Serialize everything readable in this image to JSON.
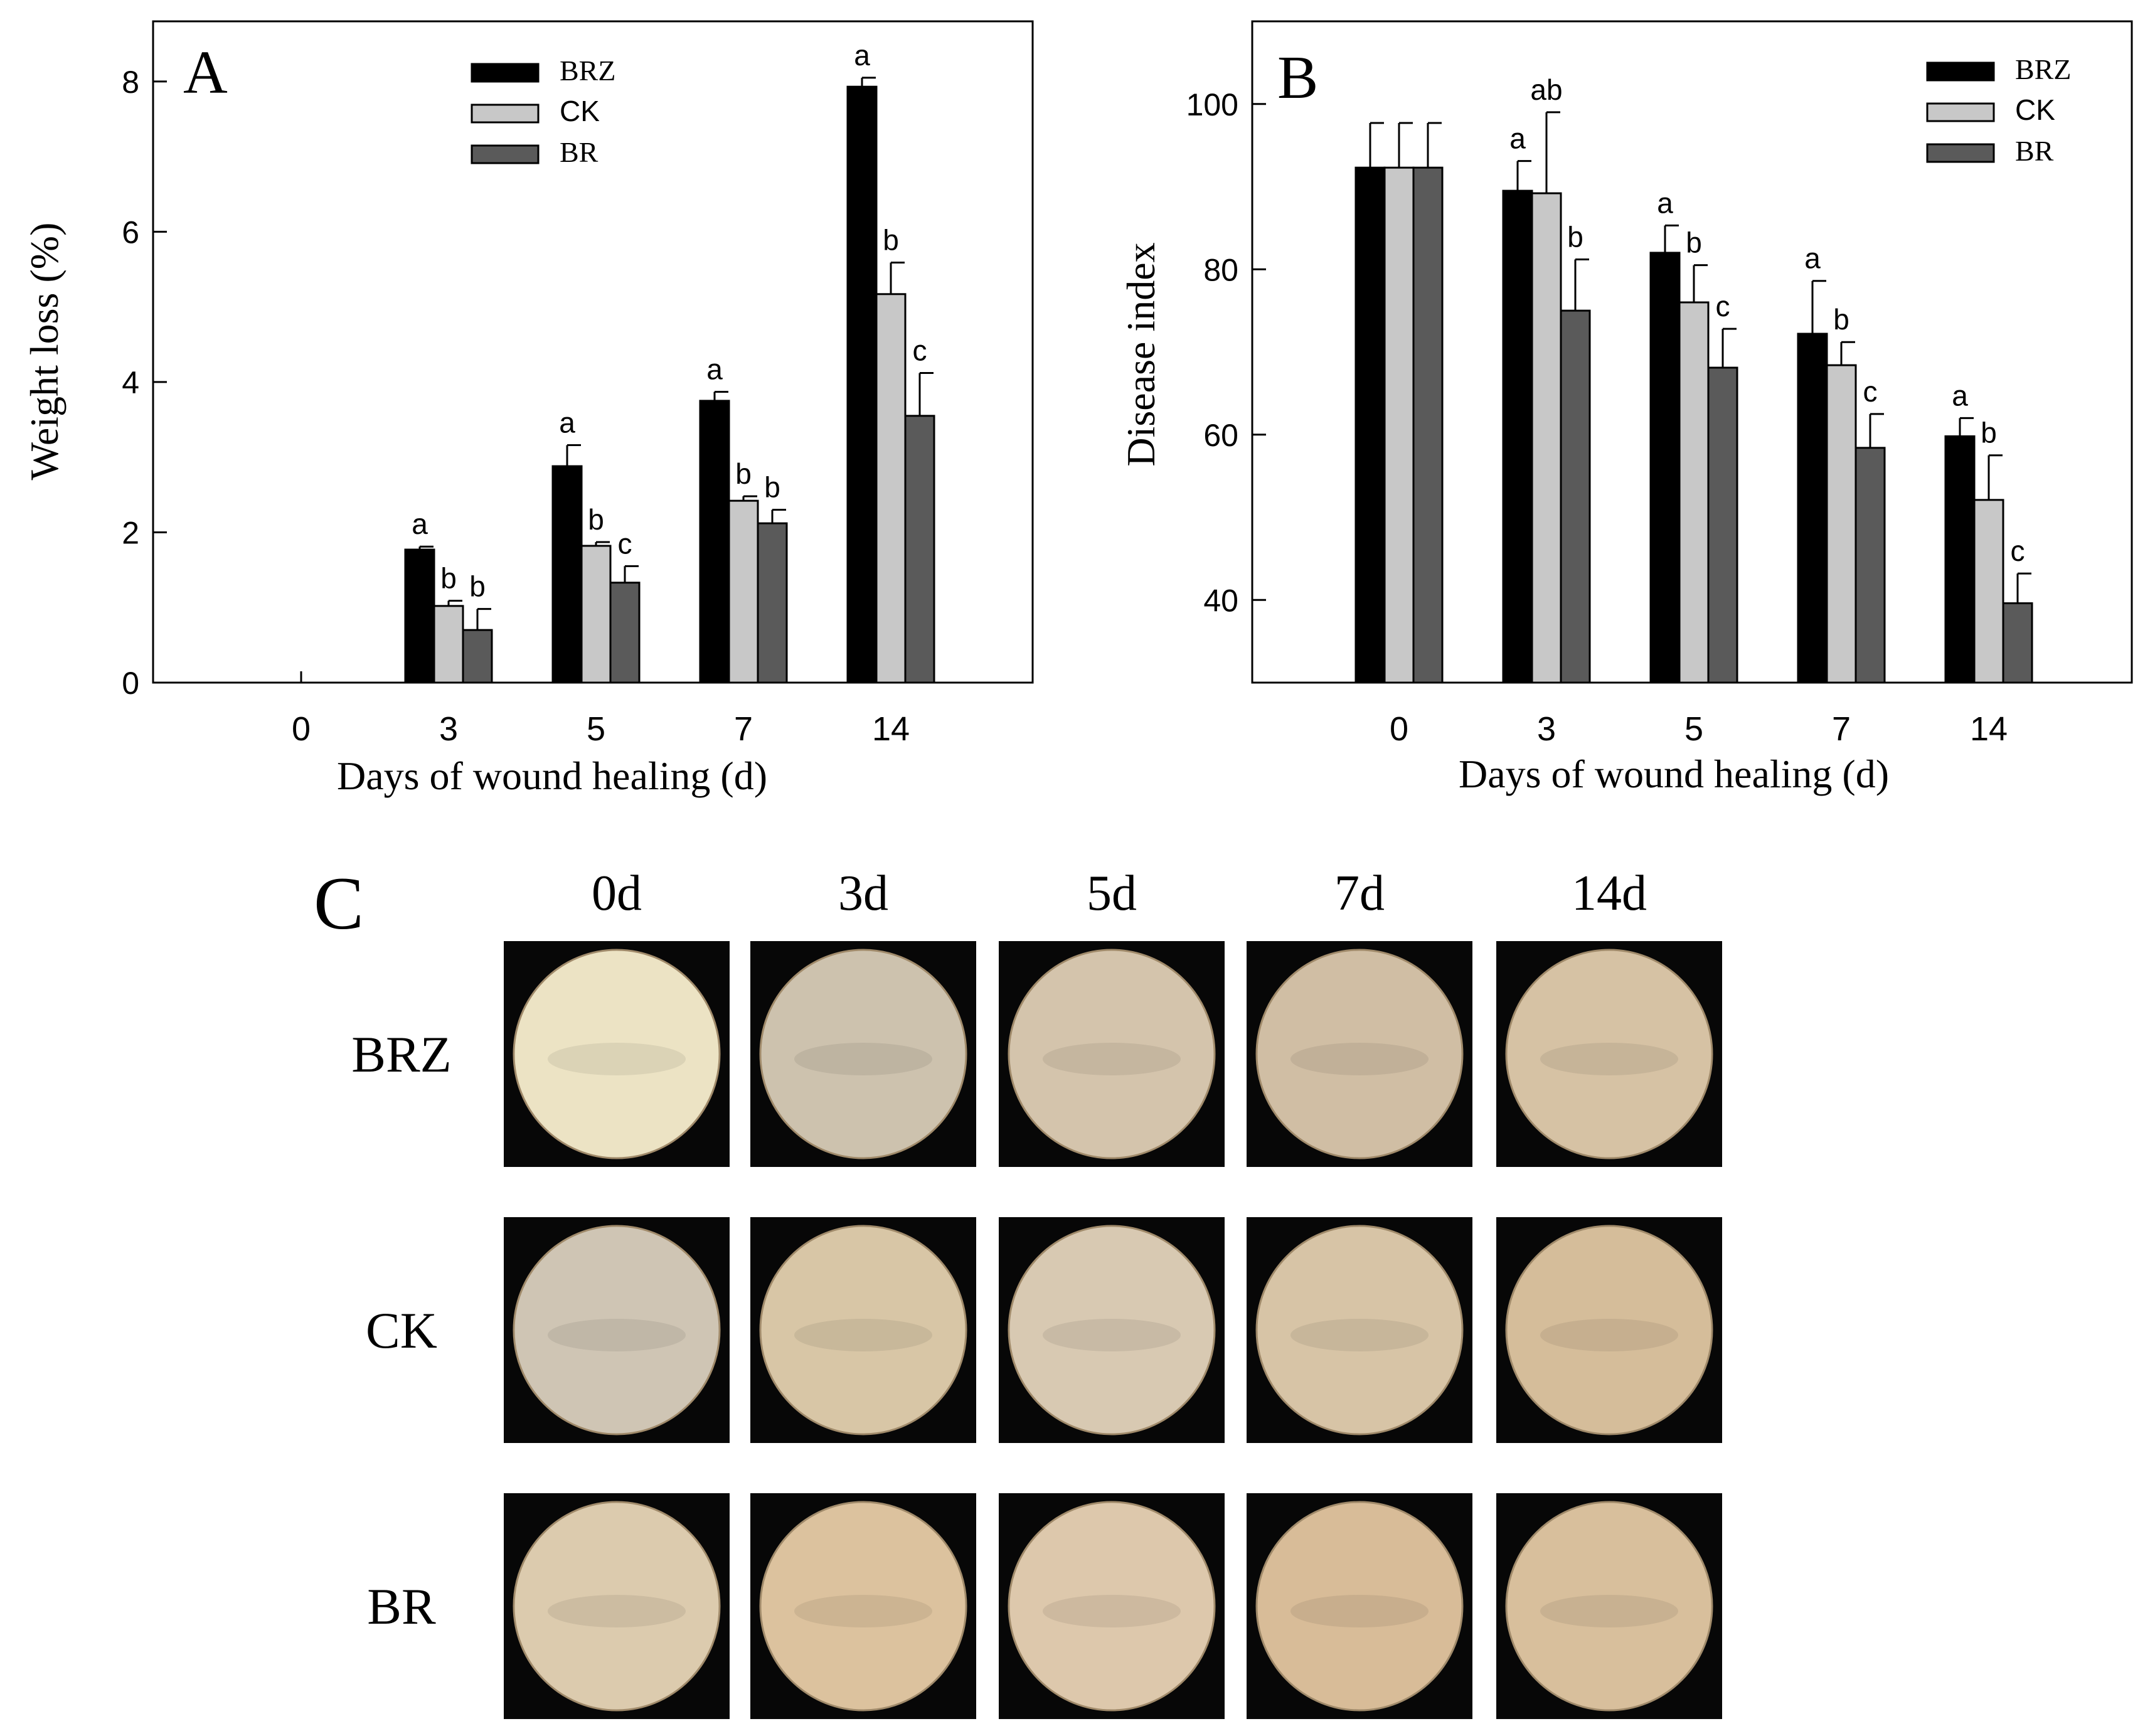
{
  "figure": {
    "panel_c": {
      "label": "C",
      "columns": [
        "0d",
        "3d",
        "5d",
        "7d",
        "14d"
      ],
      "rows": [
        "BRZ",
        "CK",
        "BR"
      ],
      "tissue_colors": [
        [
          "#ece3c4",
          "#cdc2ae",
          "#d4c4ac",
          "#d0bea4",
          "#d6c2a4"
        ],
        [
          "#cfc5b4",
          "#d8c6a6",
          "#d8c9b2",
          "#d7c4a6",
          "#d5bd9a"
        ],
        [
          "#dccbae",
          "#dcc29e",
          "#ddc8ac",
          "#d8bc98",
          "#d8bf9c"
        ]
      ]
    }
  },
  "chart_data": [
    {
      "panel_label": "A",
      "type": "bar",
      "xlabel": "Days of wound healing (d)",
      "ylabel": "Weight loss (%)",
      "ylim": [
        0,
        8.8
      ],
      "yticks": [
        "0",
        "2",
        "4",
        "6",
        "8"
      ],
      "categories": [
        "0",
        "3",
        "5",
        "7",
        "14"
      ],
      "legend_position": "top-center",
      "series": [
        {
          "name": "BRZ",
          "color": "#000000",
          "values": [
            0,
            1.77,
            2.88,
            3.75,
            7.93
          ],
          "errors": [
            0,
            0.04,
            0.28,
            0.12,
            0.12
          ],
          "letters": [
            "",
            "a",
            "a",
            "a",
            "a"
          ]
        },
        {
          "name": "CK",
          "color": "#c8c8c8",
          "values": [
            0,
            1.02,
            1.82,
            2.42,
            5.17
          ],
          "errors": [
            0,
            0.07,
            0.05,
            0.06,
            0.42
          ],
          "letters": [
            "",
            "b",
            "b",
            "b",
            "b"
          ]
        },
        {
          "name": "BR",
          "color": "#5a5a5a",
          "values": [
            0,
            0.7,
            1.33,
            2.12,
            3.55
          ],
          "errors": [
            0,
            0.28,
            0.22,
            0.18,
            0.57
          ],
          "letters": [
            "",
            "b",
            "c",
            "b",
            "c"
          ]
        }
      ]
    },
    {
      "panel_label": "B",
      "type": "bar",
      "xlabel": "Days of wound healing (d)",
      "ylabel": "Disease index",
      "ylim": [
        30,
        110
      ],
      "yticks": [
        "40",
        "60",
        "80",
        "100"
      ],
      "categories": [
        "0",
        "3",
        "5",
        "7",
        "14"
      ],
      "legend_position": "top-right",
      "series": [
        {
          "name": "BRZ",
          "color": "#000000",
          "values": [
            92.3,
            89.5,
            82.0,
            72.2,
            59.8
          ],
          "errors": [
            5.4,
            3.6,
            3.3,
            6.4,
            2.2
          ],
          "letters": [
            "",
            "a",
            "a",
            "a",
            "a"
          ]
        },
        {
          "name": "CK",
          "color": "#c8c8c8",
          "values": [
            92.3,
            89.2,
            76.0,
            68.4,
            52.1
          ],
          "errors": [
            5.4,
            9.8,
            4.5,
            2.8,
            5.4
          ],
          "letters": [
            "",
            "ab",
            "b",
            "b",
            "b"
          ]
        },
        {
          "name": "BR",
          "color": "#5a5a5a",
          "values": [
            92.3,
            75.0,
            68.1,
            58.4,
            39.6
          ],
          "errors": [
            5.4,
            6.2,
            4.7,
            4.1,
            3.6
          ],
          "letters": [
            "",
            "b",
            "c",
            "c",
            "c"
          ]
        }
      ]
    }
  ]
}
